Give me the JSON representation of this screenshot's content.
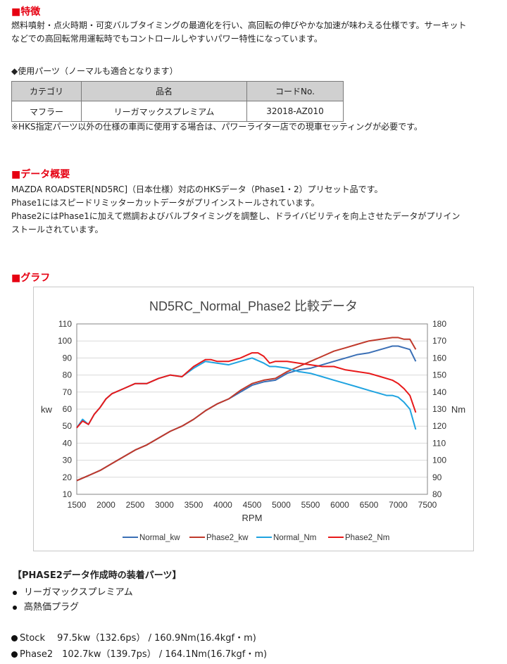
{
  "features": {
    "heading": "■特徴",
    "lines": [
      "燃料噴射・点火時期・可変バルブタイミングの最適化を行い、高回転の伸びやかな加速が味わえる仕様です。サーキット",
      "などでの高回転常用運転時でもコントロールしやすいパワー特性になっています。"
    ]
  },
  "parts": {
    "title": "◆使用パーツ（ノーマルも適合となります）",
    "headers": [
      "カテゴリ",
      "品名",
      "コードNo."
    ],
    "rows": [
      [
        "マフラー",
        "リーガマックスプレミアム",
        "32018-AZ010"
      ]
    ],
    "note": "※HKS指定パーツ以外の仕様の車両に使用する場合は、パワーライター店での現車セッティングが必要です。"
  },
  "overview": {
    "heading": "■データ概要",
    "lines": [
      "MAZDA ROADSTER[ND5RC]（日本仕様）対応のHKSデータ（Phase1・2）プリセット品です。",
      "Phase1にはスピードリミッターカットデータがプリインストールされています。",
      "Phase2にはPhase1に加えて燃調およびバルブタイミングを調整し、ドライバビリティを向上させたデータがプリイン",
      "ストールされています。"
    ]
  },
  "graph": {
    "heading": "■グラフ"
  },
  "chart_data": {
    "type": "line",
    "title": "ND5RC_Normal_Phase2 比較データ",
    "xlabel": "RPM",
    "ylabel": "kw",
    "y2label": "Nm",
    "xlim": [
      1500,
      7500
    ],
    "ylim": [
      10,
      110
    ],
    "y2lim": [
      80,
      180
    ],
    "x_ticks": [
      "1500",
      "2000",
      "2500",
      "3000",
      "3500",
      "4000",
      "4500",
      "5000",
      "5500",
      "6000",
      "6500",
      "7000",
      "7500"
    ],
    "y_ticks": [
      "10",
      "20",
      "30",
      "40",
      "50",
      "60",
      "70",
      "80",
      "90",
      "100",
      "110"
    ],
    "y2_ticks": [
      "80",
      "90",
      "100",
      "110",
      "120",
      "130",
      "140",
      "150",
      "160",
      "170",
      "180"
    ],
    "legend_position": "bottom",
    "series": [
      {
        "name": "Normal_kw",
        "axis": "left",
        "color": "#3a6fb5",
        "x": [
          1500,
          1700,
          1900,
          2100,
          2300,
          2500,
          2700,
          2900,
          3100,
          3300,
          3500,
          3700,
          3900,
          4100,
          4300,
          4500,
          4700,
          4900,
          5100,
          5300,
          5500,
          5700,
          5900,
          6100,
          6300,
          6500,
          6700,
          6800,
          6900,
          7000,
          7100,
          7200,
          7300
        ],
        "y": [
          18,
          21,
          24,
          28,
          32,
          36,
          39,
          43,
          47,
          50,
          54,
          59,
          63,
          66,
          70,
          74,
          76,
          77,
          81,
          83,
          84,
          86,
          88,
          90,
          92,
          93,
          95,
          96,
          97,
          97,
          96,
          95,
          88
        ]
      },
      {
        "name": "Phase2_kw",
        "axis": "left",
        "color": "#c0392b",
        "x": [
          1500,
          1700,
          1900,
          2100,
          2300,
          2500,
          2700,
          2900,
          3100,
          3300,
          3500,
          3700,
          3900,
          4100,
          4300,
          4500,
          4700,
          4900,
          5100,
          5300,
          5500,
          5700,
          5900,
          6100,
          6300,
          6500,
          6700,
          6900,
          7000,
          7100,
          7200,
          7300
        ],
        "y": [
          18,
          21,
          24,
          28,
          32,
          36,
          39,
          43,
          47,
          50,
          54,
          59,
          63,
          66,
          71,
          75,
          77,
          78,
          82,
          85,
          88,
          91,
          94,
          96,
          98,
          100,
          101,
          102,
          102,
          101,
          101,
          95
        ]
      },
      {
        "name": "Normal_Nm",
        "axis": "right",
        "color": "#1fa3e0",
        "x": [
          1500,
          1600,
          1700,
          1800,
          1900,
          2000,
          2100,
          2300,
          2500,
          2700,
          2900,
          3100,
          3300,
          3500,
          3700,
          3900,
          4100,
          4300,
          4500,
          4700,
          4800,
          4900,
          5100,
          5300,
          5500,
          5700,
          5900,
          6100,
          6300,
          6500,
          6700,
          6800,
          6900,
          7000,
          7100,
          7200,
          7300
        ],
        "y": [
          119,
          124,
          121,
          127,
          131,
          136,
          139,
          142,
          145,
          145,
          148,
          150,
          149,
          154,
          158,
          157,
          156,
          158,
          160,
          157,
          155,
          155,
          154,
          152,
          151,
          149,
          147,
          145,
          143,
          141,
          139,
          138,
          138,
          137,
          134,
          130,
          118
        ]
      },
      {
        "name": "Phase2_Nm",
        "axis": "right",
        "color": "#e8191a",
        "x": [
          1500,
          1600,
          1700,
          1800,
          1900,
          2000,
          2100,
          2300,
          2500,
          2700,
          2900,
          3100,
          3300,
          3500,
          3700,
          3800,
          3900,
          4100,
          4300,
          4500,
          4600,
          4700,
          4800,
          4900,
          5100,
          5300,
          5500,
          5700,
          5900,
          6100,
          6300,
          6500,
          6700,
          6900,
          7000,
          7100,
          7200,
          7300
        ],
        "y": [
          119,
          123,
          121,
          127,
          131,
          136,
          139,
          142,
          145,
          145,
          148,
          150,
          149,
          155,
          159,
          159,
          158,
          158,
          160,
          163,
          163,
          161,
          157,
          158,
          158,
          157,
          156,
          155,
          155,
          153,
          152,
          151,
          149,
          147,
          145,
          142,
          138,
          128
        ]
      }
    ]
  },
  "equipment": {
    "title": "【PHASE2データ作成時の装着パーツ】",
    "items": [
      "リーガマックスプレミアム",
      "高熱価プラグ"
    ]
  },
  "specs": [
    "Stock　 97.5kw（132.6ps） / 160.9Nm(16.4kgf・m)",
    "Phase2　102.7kw（139.7ps） / 164.1Nm(16.7kgf・m)"
  ]
}
